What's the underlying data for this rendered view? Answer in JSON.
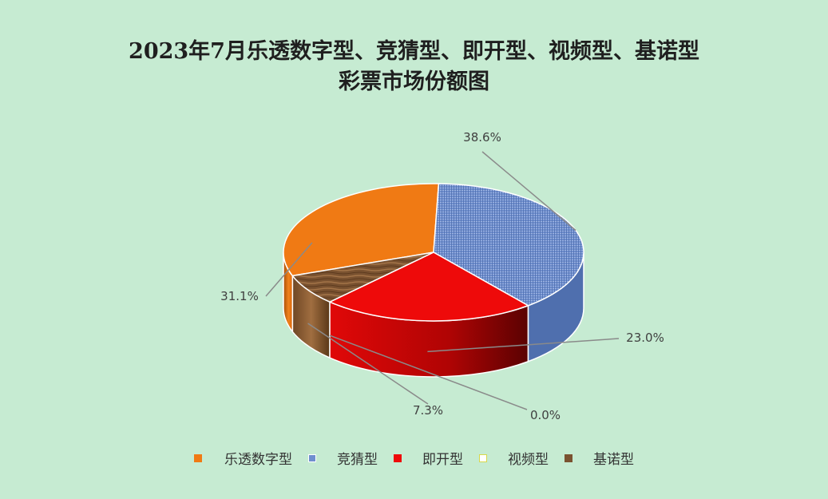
{
  "chart_data": {
    "type": "pie",
    "title": "2023年7月乐透数字型、竞猜型、即开型、视频型、基诺型彩票市场份额图",
    "title_lines": [
      "2023年7月乐透数字型、竞猜型、即开型、视频型、基诺型",
      "彩票市场份额图"
    ],
    "categories": [
      "乐透数字型",
      "竞猜型",
      "即开型",
      "视频型",
      "基诺型"
    ],
    "values": [
      31.1,
      38.6,
      23.0,
      0.0,
      7.3
    ],
    "labels": [
      "31.1%",
      "38.6%",
      "23.0%",
      "0.0%",
      "7.3%"
    ],
    "colors": [
      "#f07a14",
      "#6f8fcf",
      "#ee0a0a",
      "#ffffff",
      "#7a5230"
    ],
    "legend_position": "bottom",
    "style": "3d"
  }
}
